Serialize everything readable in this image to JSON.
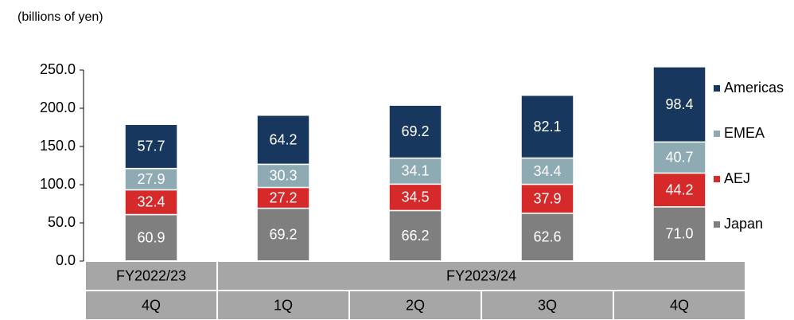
{
  "chart_data": {
    "type": "stacked_bar",
    "unit_label": "(billions of yen)",
    "categories": [
      "4Q",
      "1Q",
      "2Q",
      "3Q",
      "4Q"
    ],
    "category_groups": [
      {
        "label": "FY2022/23",
        "span": 1
      },
      {
        "label": "FY2023/24",
        "span": 4
      }
    ],
    "series": [
      {
        "name": "Japan",
        "color": "#7f7f7f",
        "values": [
          60.9,
          69.2,
          66.2,
          62.6,
          71.0
        ],
        "value_labels": [
          "60.9",
          "69.2",
          "66.2",
          "62.6",
          "71.0"
        ]
      },
      {
        "name": "AEJ",
        "color": "#d62a2a",
        "values": [
          32.4,
          27.2,
          34.5,
          37.9,
          44.2
        ],
        "value_labels": [
          "32.4",
          "27.2",
          "34.5",
          "37.9",
          "44.2"
        ]
      },
      {
        "name": "EMEA",
        "color": "#8eaab3",
        "values": [
          27.9,
          30.3,
          34.1,
          34.4,
          40.7
        ],
        "value_labels": [
          "27.9",
          "30.3",
          "34.1",
          "34.4",
          "40.7"
        ]
      },
      {
        "name": "Americas",
        "color": "#17375e",
        "values": [
          57.7,
          64.2,
          69.2,
          82.1,
          98.4
        ],
        "value_labels": [
          "57.7",
          "64.2",
          "69.2",
          "82.1",
          "98.4"
        ]
      }
    ],
    "ylim": [
      0,
      250
    ],
    "yticks": [
      {
        "value": 0,
        "label": "0.0"
      },
      {
        "value": 50,
        "label": "50.0"
      },
      {
        "value": 100,
        "label": "100.0"
      },
      {
        "value": 150,
        "label": "150.0"
      },
      {
        "value": 200,
        "label": "200.0"
      },
      {
        "value": 250,
        "label": "250.0"
      }
    ]
  }
}
